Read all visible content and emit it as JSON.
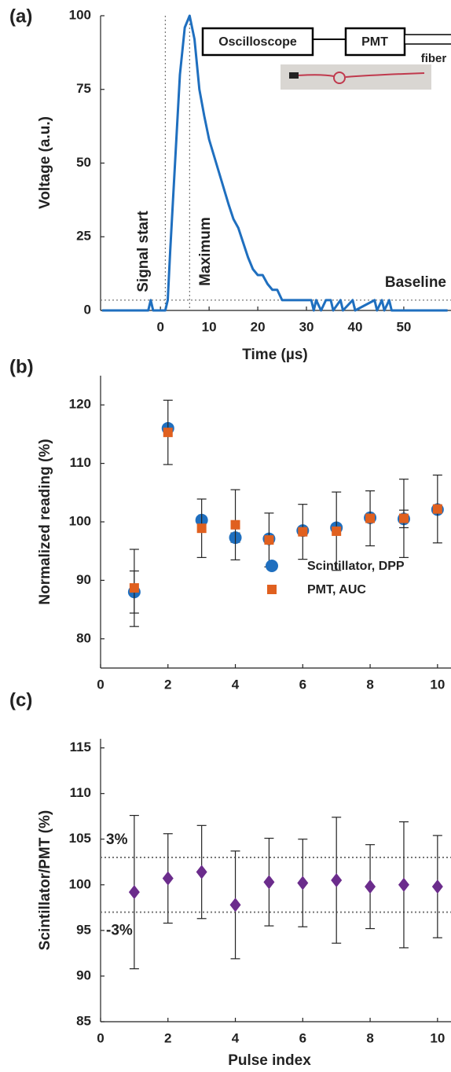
{
  "chart_data": [
    {
      "type": "line",
      "panel_label": "(a)",
      "xlabel": "Time (µs)",
      "ylabel": "Voltage (a.u.)",
      "xlim": [
        -12.3,
        59.7
      ],
      "ylim": [
        0,
        100
      ],
      "xticks": [
        0,
        10,
        20,
        30,
        40,
        50
      ],
      "yticks": [
        0,
        25,
        50,
        75,
        100
      ],
      "series": [
        {
          "color": "#1f6fbf",
          "x": [
            -12,
            -2.5,
            -2,
            -1.5,
            1,
            1.5,
            2,
            3,
            4,
            5,
            6,
            7,
            8,
            9,
            10,
            12,
            14,
            15,
            16,
            17,
            18,
            19,
            20,
            21,
            22,
            23,
            24,
            25,
            31,
            31.5,
            32,
            33,
            34,
            35,
            35.5,
            37,
            37.5,
            39.5,
            40,
            44,
            44.5,
            45.5,
            46,
            47,
            47.5,
            59
          ],
          "values": [
            0,
            0,
            3.5,
            0,
            0,
            3.5,
            20,
            50,
            80,
            96,
            100,
            92,
            75,
            66,
            58,
            47,
            36,
            31,
            28,
            23,
            18,
            14,
            12,
            12,
            9,
            7,
            7,
            3.5,
            3.5,
            0,
            3.5,
            0,
            3.5,
            3.5,
            0,
            3.5,
            0,
            3.5,
            0,
            3.5,
            0,
            3.5,
            0,
            3.5,
            0,
            0
          ]
        }
      ],
      "vlines": [
        1,
        6
      ],
      "hlines": [
        3.5
      ],
      "annotations": [
        "Signal start",
        "Maximum",
        "Baseline"
      ],
      "inset": {
        "boxes": [
          "Oscilloscope",
          "PMT"
        ],
        "label": "fiber"
      }
    },
    {
      "type": "scatter",
      "panel_label": "(b)",
      "ylabel": "Normalized reading (%)",
      "xlim": [
        0,
        10.4
      ],
      "ylim": [
        75,
        125
      ],
      "xticks": [
        0,
        2,
        4,
        6,
        8,
        10
      ],
      "yticks": [
        80,
        90,
        100,
        110,
        120
      ],
      "legend": "lower right",
      "series": [
        {
          "name": "Scintillator, DPP",
          "color": "#1f6fbf",
          "marker": "circle",
          "x": [
            1,
            2,
            3,
            4,
            5,
            6,
            7,
            8,
            9,
            10
          ],
          "values": [
            88,
            116,
            100.3,
            97.3,
            97.1,
            98.5,
            99,
            100.7,
            100.5,
            102.1
          ],
          "errors": [
            3.6,
            0.6,
            0.6,
            0.8,
            0.5,
            0.5,
            0.6,
            0.5,
            1.5,
            0.5
          ]
        },
        {
          "name": "PMT, AUC",
          "color": "#e0601f",
          "marker": "square",
          "x": [
            1,
            2,
            3,
            4,
            5,
            6,
            7,
            8,
            9,
            10
          ],
          "values": [
            88.7,
            115.3,
            98.9,
            99.5,
            96.9,
            98.3,
            98.4,
            100.6,
            100.6,
            102.2
          ],
          "errors": [
            6.6,
            5.5,
            5,
            6,
            4.6,
            4.7,
            6.7,
            4.7,
            6.7,
            5.8
          ]
        }
      ]
    },
    {
      "type": "scatter",
      "panel_label": "(c)",
      "xlabel": "Pulse index",
      "ylabel": "Scintillator/PMT (%)",
      "xlim": [
        0,
        10.4
      ],
      "ylim": [
        85,
        116
      ],
      "xticks": [
        0,
        2,
        4,
        6,
        8,
        10
      ],
      "yticks": [
        85,
        90,
        95,
        100,
        105,
        110,
        115
      ],
      "hlines": [
        103,
        97
      ],
      "annotations": [
        "3%",
        "-3%"
      ],
      "series": [
        {
          "color": "#6b2c8c",
          "marker": "diamond",
          "x": [
            1,
            2,
            3,
            4,
            5,
            6,
            7,
            8,
            9,
            10
          ],
          "values": [
            99.2,
            100.7,
            101.4,
            97.8,
            100.3,
            100.2,
            100.5,
            99.8,
            100,
            99.8
          ],
          "errors": [
            8.4,
            4.9,
            5.1,
            5.9,
            4.8,
            4.8,
            6.9,
            4.6,
            6.9,
            5.6
          ]
        }
      ]
    }
  ]
}
